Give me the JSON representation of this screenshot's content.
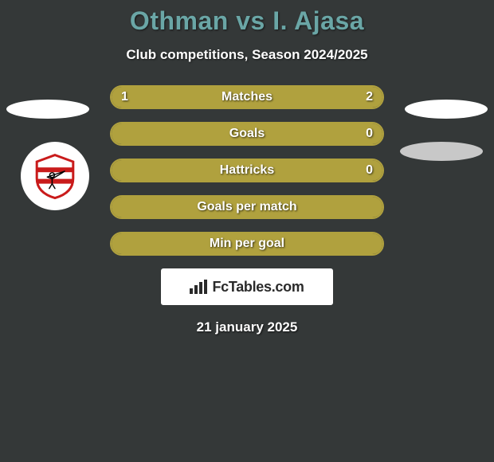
{
  "title": "Othman vs I. Ajasa",
  "subtitle": "Club competitions, Season 2024/2025",
  "date": "21 january 2025",
  "watermark": "FcTables.com",
  "colors": {
    "background": "#343838",
    "title": "#6aa6a6",
    "accent": "#b0a13e",
    "text": "#ffffff",
    "badge_red": "#c91b1b"
  },
  "bars": [
    {
      "label": "Matches",
      "left_val": "1",
      "right_val": "2",
      "left_fill_pct": 33,
      "right_fill_pct": 67
    },
    {
      "label": "Goals",
      "left_val": "",
      "right_val": "0",
      "left_fill_pct": 100,
      "right_fill_pct": 0
    },
    {
      "label": "Hattricks",
      "left_val": "",
      "right_val": "0",
      "left_fill_pct": 100,
      "right_fill_pct": 0
    },
    {
      "label": "Goals per match",
      "left_val": "",
      "right_val": "",
      "left_fill_pct": 100,
      "right_fill_pct": 0
    },
    {
      "label": "Min per goal",
      "left_val": "",
      "right_val": "",
      "left_fill_pct": 100,
      "right_fill_pct": 0
    }
  ]
}
